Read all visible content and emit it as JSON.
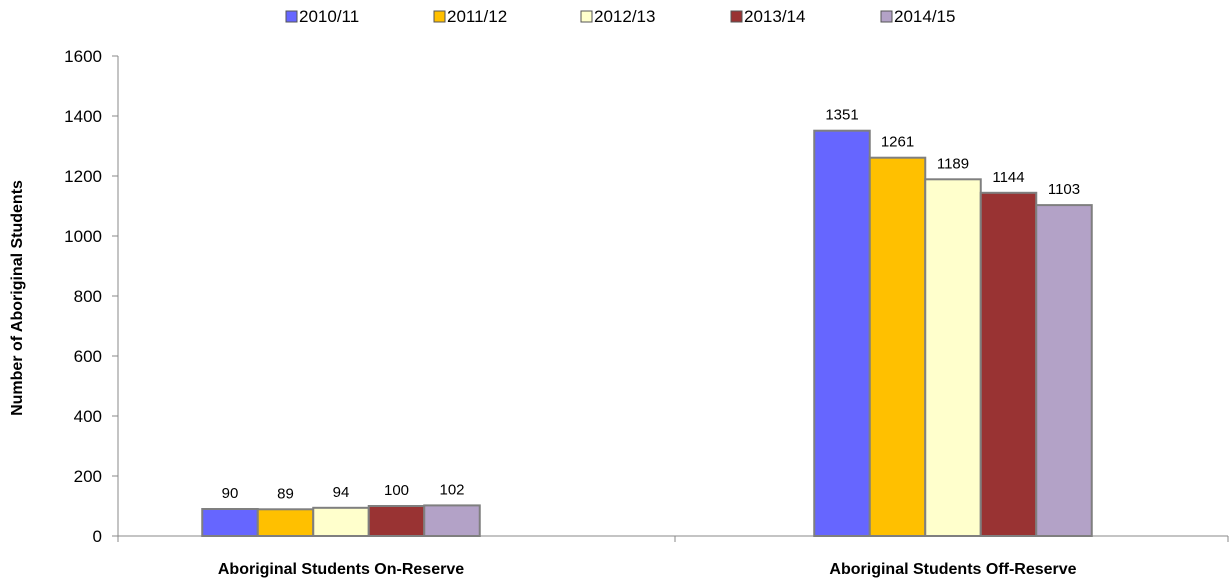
{
  "chart_data": {
    "type": "bar",
    "categories": [
      "Aboriginal Students On-Reserve",
      "Aboriginal Students Off-Reserve"
    ],
    "series": [
      {
        "name": "2010/11",
        "values": [
          90,
          1351
        ],
        "color": "#6666ff"
      },
      {
        "name": "2011/12",
        "values": [
          89,
          1261
        ],
        "color": "#ffc000"
      },
      {
        "name": "2012/13",
        "values": [
          94,
          1189
        ],
        "color": "#ffffcc"
      },
      {
        "name": "2013/14",
        "values": [
          100,
          1144
        ],
        "color": "#993333"
      },
      {
        "name": "2014/15",
        "values": [
          102,
          1103
        ],
        "color": "#b3a2c7"
      }
    ],
    "xlabel": "",
    "ylabel": "Number of Aboriginal Students",
    "ylim": [
      0,
      1600
    ],
    "yticks": [
      0,
      200,
      400,
      600,
      800,
      1000,
      1200,
      1400,
      1600
    ],
    "grid": false,
    "legend_position": "top",
    "data_labels": true
  }
}
